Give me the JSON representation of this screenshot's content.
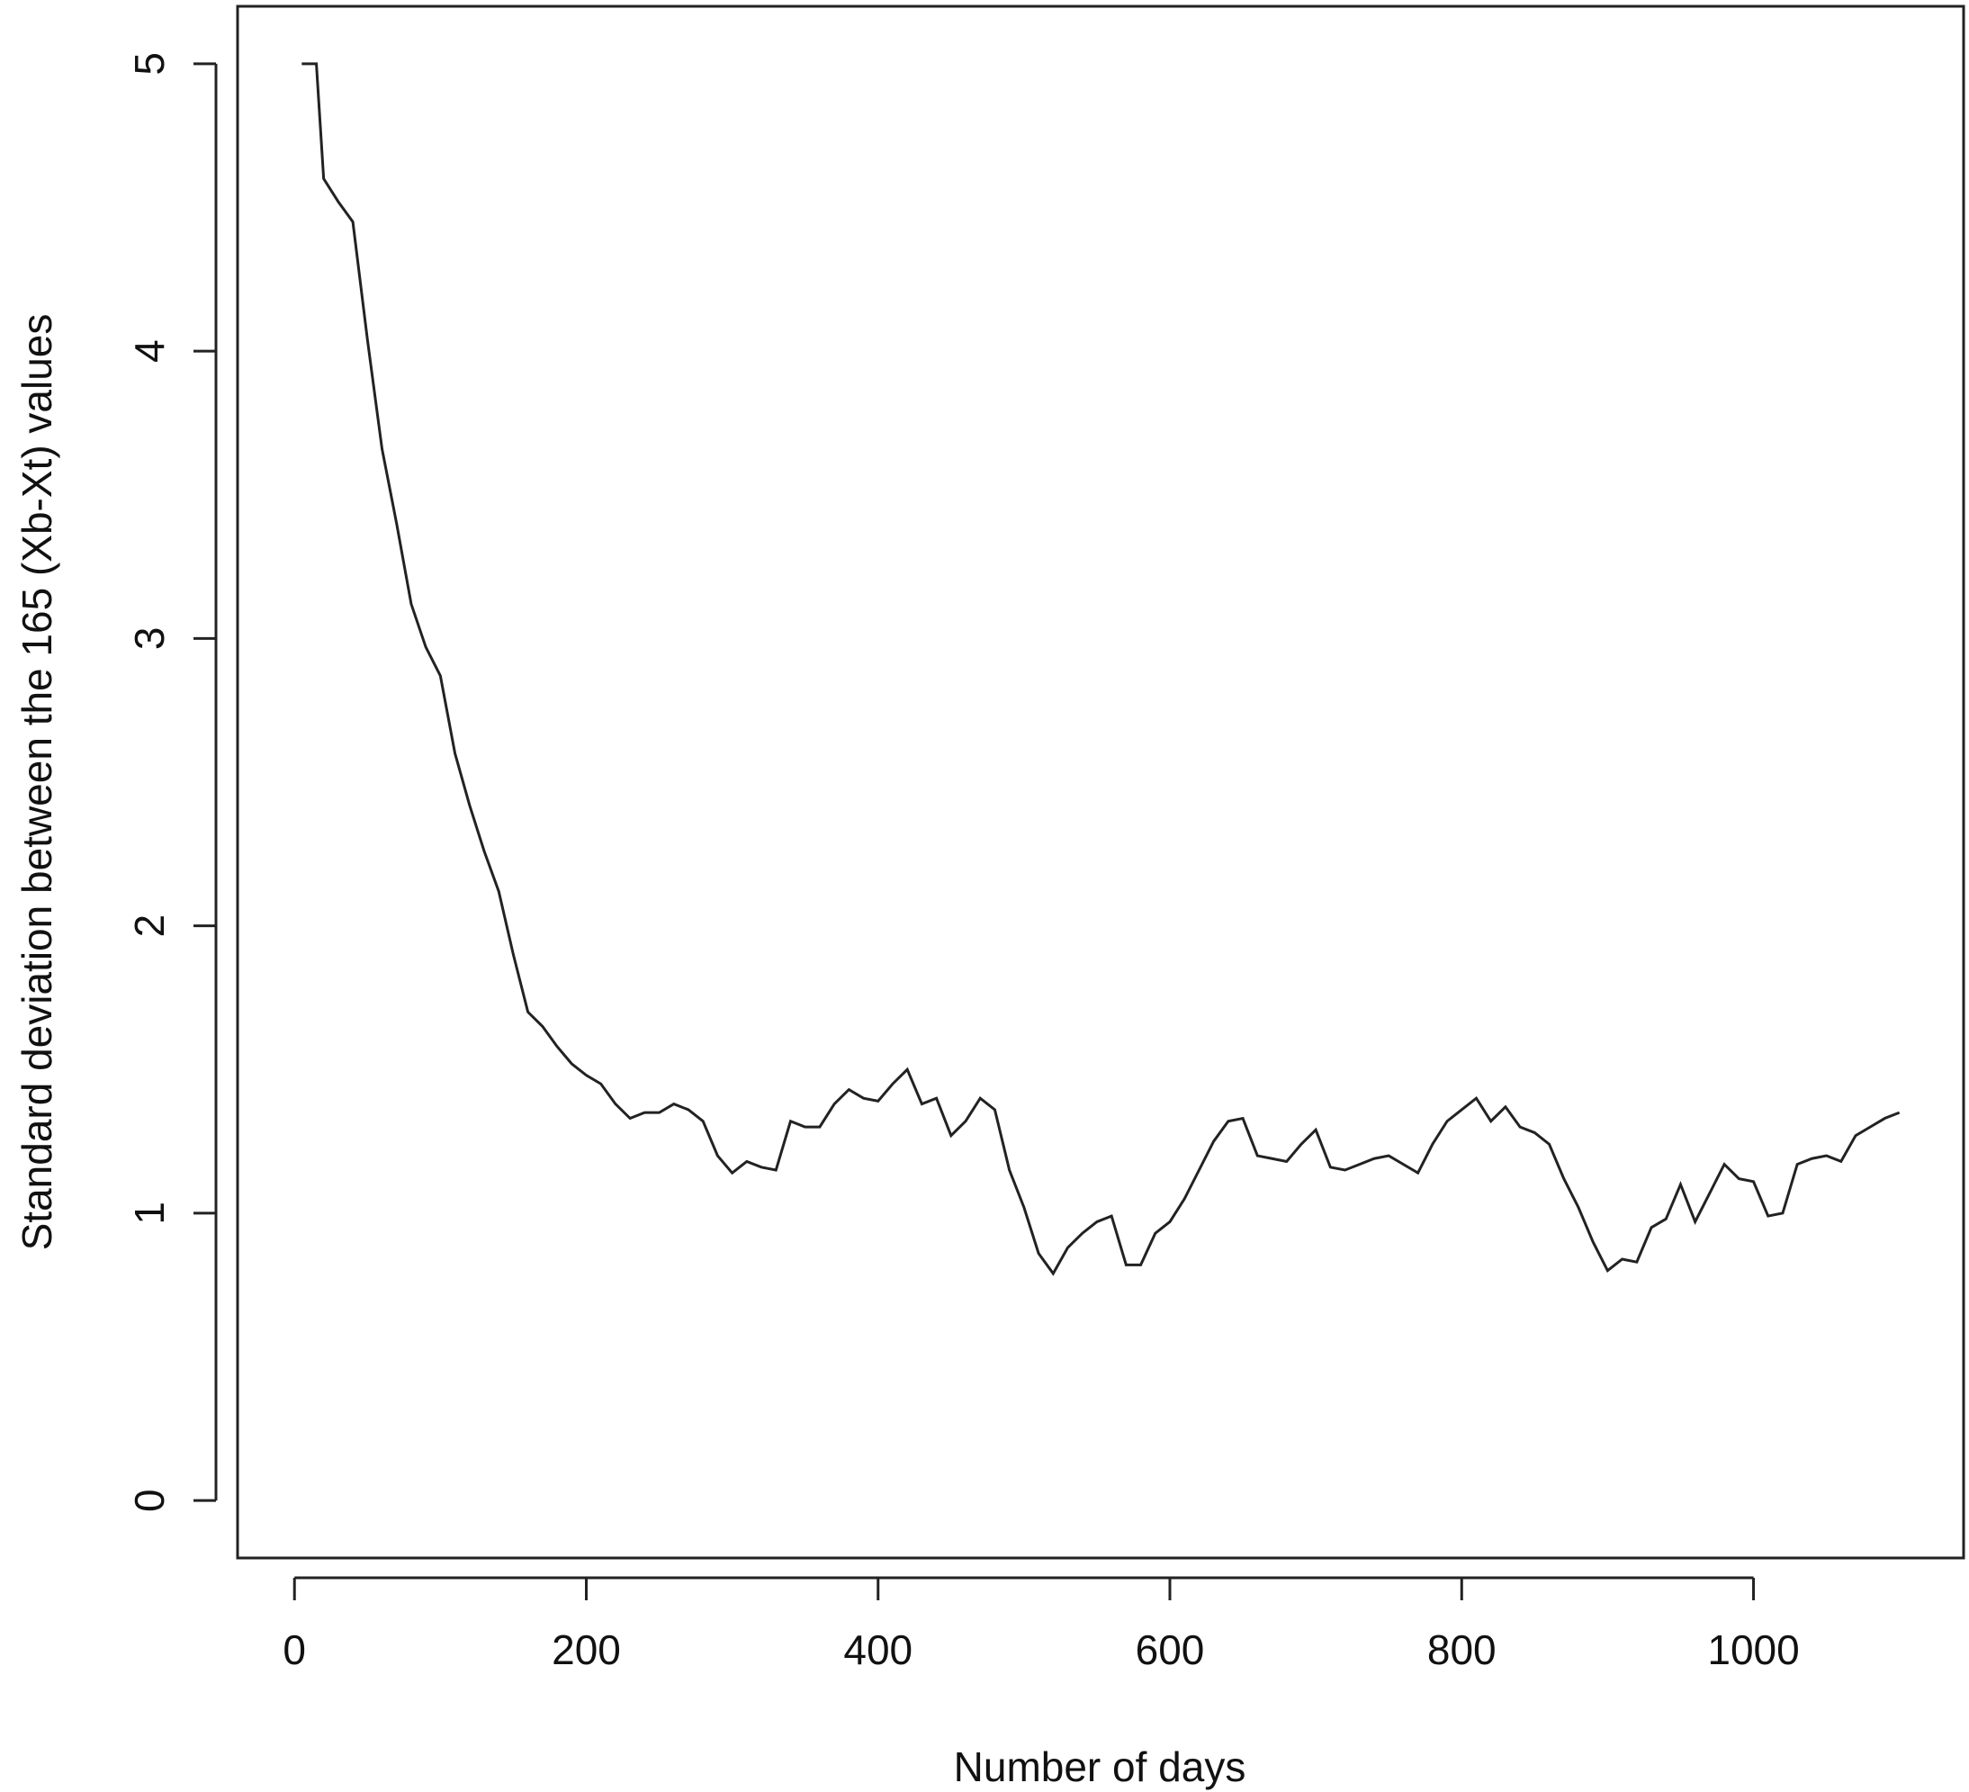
{
  "chart_data": {
    "type": "line",
    "xlabel": "Number of days",
    "ylabel": "Standard deviation between the 165 (Xb-Xt) values",
    "x": [
      5,
      15,
      20,
      30,
      40,
      50,
      60,
      70,
      80,
      90,
      100,
      110,
      120,
      130,
      140,
      150,
      160,
      170,
      180,
      190,
      200,
      210,
      220,
      230,
      240,
      250,
      260,
      270,
      280,
      290,
      300,
      310,
      320,
      330,
      340,
      350,
      360,
      370,
      380,
      390,
      400,
      410,
      420,
      430,
      440,
      450,
      460,
      470,
      480,
      490,
      500,
      510,
      520,
      530,
      540,
      550,
      560,
      570,
      580,
      590,
      600,
      610,
      620,
      630,
      640,
      650,
      660,
      670,
      680,
      690,
      700,
      710,
      720,
      730,
      740,
      750,
      760,
      770,
      780,
      790,
      800,
      810,
      820,
      830,
      840,
      850,
      860,
      870,
      880,
      890,
      900,
      910,
      920,
      930,
      940,
      950,
      960,
      970,
      980,
      990,
      1000,
      1010,
      1020,
      1030,
      1040,
      1050,
      1060,
      1070,
      1080,
      1090,
      1100
    ],
    "values": [
      5.0,
      5.0,
      4.6,
      4.52,
      4.45,
      4.04,
      3.66,
      3.4,
      3.12,
      2.97,
      2.87,
      2.6,
      2.42,
      2.26,
      2.12,
      1.9,
      1.7,
      1.65,
      1.58,
      1.52,
      1.48,
      1.45,
      1.38,
      1.33,
      1.35,
      1.35,
      1.38,
      1.36,
      1.32,
      1.2,
      1.14,
      1.18,
      1.16,
      1.15,
      1.32,
      1.3,
      1.3,
      1.38,
      1.43,
      1.4,
      1.39,
      1.45,
      1.5,
      1.38,
      1.4,
      1.27,
      1.32,
      1.4,
      1.36,
      1.15,
      1.02,
      0.86,
      0.79,
      0.88,
      0.93,
      0.97,
      0.99,
      0.82,
      0.82,
      0.93,
      0.97,
      1.05,
      1.15,
      1.25,
      1.32,
      1.33,
      1.2,
      1.19,
      1.18,
      1.24,
      1.29,
      1.16,
      1.15,
      1.17,
      1.19,
      1.2,
      1.17,
      1.14,
      1.24,
      1.32,
      1.36,
      1.4,
      1.32,
      1.37,
      1.3,
      1.28,
      1.24,
      1.12,
      1.02,
      0.9,
      0.8,
      0.84,
      0.83,
      0.95,
      0.98,
      1.1,
      0.97,
      1.07,
      1.17,
      1.12,
      1.11,
      0.99,
      1.0,
      1.17,
      1.19,
      1.2,
      1.18,
      1.27,
      1.3,
      1.33,
      1.35
    ],
    "color": "#111111",
    "xlim": [
      -39,
      1144
    ],
    "xticks": [
      0,
      200,
      400,
      600,
      800,
      1000
    ],
    "ylim": [
      -0.2,
      5.2
    ],
    "yticks": [
      0,
      1,
      2,
      3,
      4,
      5
    ]
  }
}
